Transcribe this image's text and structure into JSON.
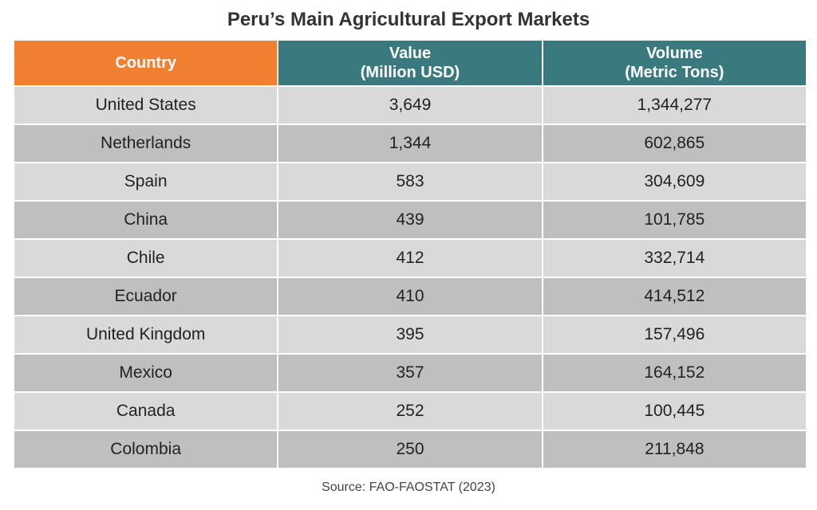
{
  "chart_data": {
    "type": "table",
    "title": "Peru’s Main Agricultural Export Markets",
    "columns": [
      {
        "key": "country",
        "label_lines": [
          "Country"
        ]
      },
      {
        "key": "value",
        "label_lines": [
          "Value",
          "(Million USD)"
        ]
      },
      {
        "key": "volume",
        "label_lines": [
          "Volume",
          "(Metric Tons)"
        ]
      }
    ],
    "rows": [
      {
        "country": "United States",
        "value": "3,649",
        "volume": "1,344,277"
      },
      {
        "country": "Netherlands",
        "value": "1,344",
        "volume": "602,865"
      },
      {
        "country": "Spain",
        "value": "583",
        "volume": "304,609"
      },
      {
        "country": "China",
        "value": "439",
        "volume": "101,785"
      },
      {
        "country": "Chile",
        "value": "412",
        "volume": "332,714"
      },
      {
        "country": "Ecuador",
        "value": "410",
        "volume": "414,512"
      },
      {
        "country": "United Kingdom",
        "value": "395",
        "volume": "157,496"
      },
      {
        "country": "Mexico",
        "value": "357",
        "volume": "164,152"
      },
      {
        "country": "Canada",
        "value": "252",
        "volume": "100,445"
      },
      {
        "country": "Colombia",
        "value": "250",
        "volume": "211,848"
      }
    ],
    "source": "Source: FAO-FAOSTAT (2023)",
    "colors": {
      "header_country": "#f07f32",
      "header_metrics": "#3a7a7e",
      "row_light": "#d9d9d9",
      "row_dark": "#bfbfbf"
    }
  }
}
